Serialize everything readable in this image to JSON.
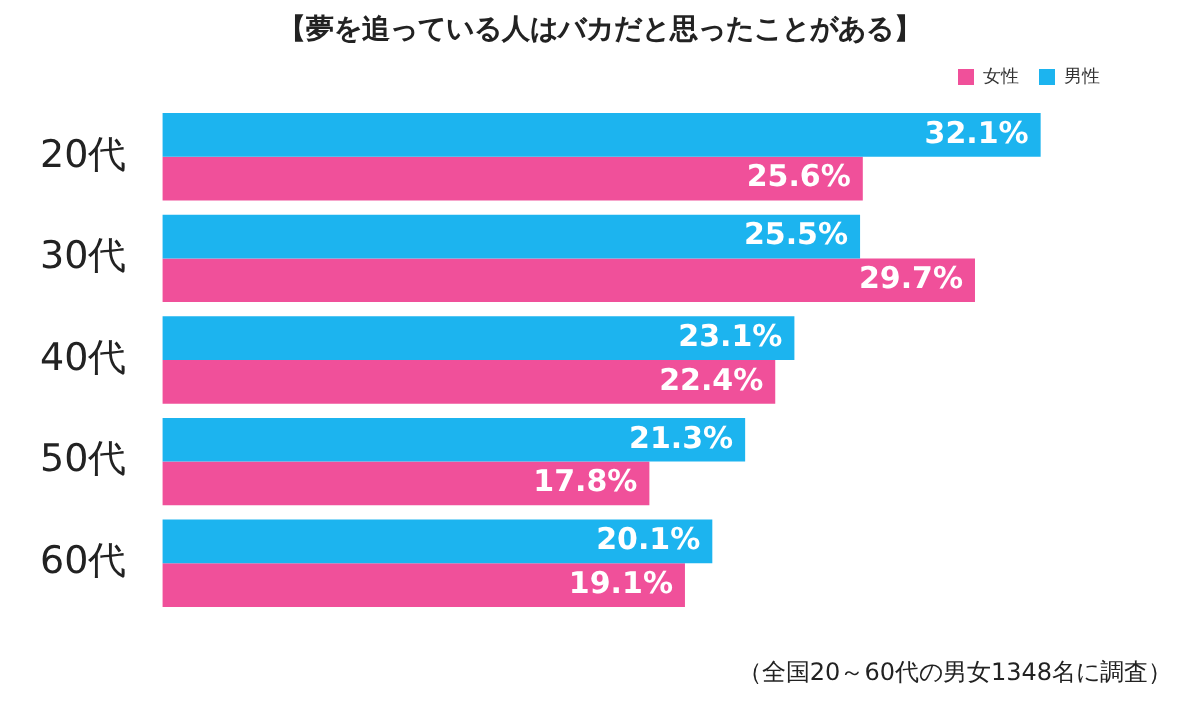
{
  "chart_data": {
    "type": "bar",
    "orientation": "horizontal",
    "title": "【夢を追っている人はバカだと思ったことがある】",
    "categories": [
      "20代",
      "30代",
      "40代",
      "50代",
      "60代"
    ],
    "series": [
      {
        "name": "男性",
        "color": "#1cb4ef",
        "values": [
          32.1,
          25.5,
          23.1,
          21.3,
          20.1
        ],
        "value_labels": [
          "32.1%",
          "25.5%",
          "23.1%",
          "21.3%",
          "20.1%"
        ]
      },
      {
        "name": "女性",
        "color": "#f0509a",
        "values": [
          25.6,
          29.7,
          22.4,
          17.8,
          19.1
        ],
        "value_labels": [
          "25.6%",
          "29.7%",
          "22.4%",
          "17.8%",
          "19.1%"
        ]
      }
    ],
    "legend": "top right",
    "grid": false,
    "annotations": [
      "（全国20～60代の男女1348名に調査）"
    ]
  }
}
